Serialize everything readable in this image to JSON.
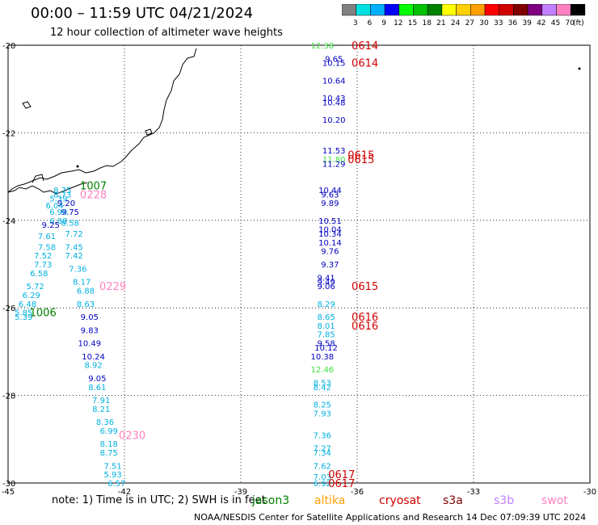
{
  "title": "00:00 – 11:59 UTC 04/21/2024",
  "subtitle": "12 hour collection of altimeter wave heights",
  "color_scale": {
    "labels": [
      "3",
      "6",
      "9",
      "12",
      "15",
      "18",
      "21",
      "24",
      "27",
      "30",
      "33",
      "36",
      "39",
      "42",
      "45",
      "70"
    ],
    "unit": "(ft)",
    "colors": [
      "#808080",
      "#00e0e0",
      "#00b0ff",
      "#0000ff",
      "#00ff00",
      "#00c000",
      "#008000",
      "#ffff00",
      "#ffd000",
      "#ffa000",
      "#ff0000",
      "#d00000",
      "#800000",
      "#800080",
      "#c080ff",
      "#ff80c0",
      "#000000"
    ]
  },
  "axes": {
    "lon_labels": [
      "-45",
      "-42",
      "-39",
      "-36",
      "-33",
      "-30"
    ],
    "lat_labels": [
      "-20",
      "-22",
      "-24",
      "-26",
      "-28",
      "-30"
    ],
    "lon_range": [
      -45,
      -30
    ],
    "lat_range": [
      -30,
      -20
    ]
  },
  "note": "note: 1) Time is in UTC; 2) SWH is in feet",
  "legend": [
    {
      "name": "jason3",
      "color": "#008000"
    },
    {
      "name": "altika",
      "color": "#ffa000"
    },
    {
      "name": "cryosat",
      "color": "#d00000"
    },
    {
      "name": "s3a",
      "color": "#800000"
    },
    {
      "name": "s3b",
      "color": "#c080ff"
    },
    {
      "name": "swot",
      "color": "#ff80c0"
    }
  ],
  "footer": "NOAA/NESDIS Center for Satellite Applications and Research   14 Dec 07:09:39 UTC 2024",
  "chart_data": {
    "type": "scatter",
    "xlabel": "",
    "ylabel": "",
    "xlim": [
      -45,
      -30
    ],
    "ylim": [
      -30,
      -20
    ],
    "grid": true,
    "points": [
      {
        "lon": -36.9,
        "lat": -20.0,
        "label": "12.38",
        "color": "#40e040"
      },
      {
        "lon": -36.6,
        "lat": -20.3,
        "label": "9.65",
        "color": "#0000c0"
      },
      {
        "lon": -36.6,
        "lat": -20.4,
        "label": "10.15",
        "color": "#0000c0"
      },
      {
        "lon": -36.6,
        "lat": -20.8,
        "label": "10.64",
        "color": "#0000c0"
      },
      {
        "lon": -36.6,
        "lat": -21.2,
        "label": "10.43",
        "color": "#0000c0"
      },
      {
        "lon": -36.6,
        "lat": -21.3,
        "label": "10.48",
        "color": "#0000c0"
      },
      {
        "lon": -36.6,
        "lat": -21.7,
        "label": "10.20",
        "color": "#0000c0"
      },
      {
        "lon": -36.6,
        "lat": -22.4,
        "label": "11.53",
        "color": "#0000c0"
      },
      {
        "lon": -36.6,
        "lat": -22.6,
        "label": "11.80",
        "color": "#40e040"
      },
      {
        "lon": -36.6,
        "lat": -22.7,
        "label": "11.29",
        "color": "#0000c0"
      },
      {
        "lon": -36.7,
        "lat": -23.3,
        "label": "10.44",
        "color": "#0000c0"
      },
      {
        "lon": -36.7,
        "lat": -23.4,
        "label": "9.63",
        "color": "#0000c0"
      },
      {
        "lon": -36.7,
        "lat": -23.6,
        "label": "9.89",
        "color": "#0000c0"
      },
      {
        "lon": -36.7,
        "lat": -24.0,
        "label": "10.51",
        "color": "#0000c0"
      },
      {
        "lon": -36.7,
        "lat": -24.2,
        "label": "10.04",
        "color": "#0000c0"
      },
      {
        "lon": -36.7,
        "lat": -24.3,
        "label": "10.34",
        "color": "#0000c0"
      },
      {
        "lon": -36.7,
        "lat": -24.5,
        "label": "10.14",
        "color": "#0000c0"
      },
      {
        "lon": -36.7,
        "lat": -24.7,
        "label": "9.76",
        "color": "#0000c0"
      },
      {
        "lon": -36.7,
        "lat": -25.0,
        "label": "9.37",
        "color": "#0000c0"
      },
      {
        "lon": -36.8,
        "lat": -25.3,
        "label": "9.41",
        "color": "#0000c0"
      },
      {
        "lon": -36.8,
        "lat": -25.4,
        "label": "9.49",
        "color": "#0000c0"
      },
      {
        "lon": -36.8,
        "lat": -25.5,
        "label": "9.06",
        "color": "#0000c0"
      },
      {
        "lon": -36.8,
        "lat": -25.9,
        "label": "8.29",
        "color": "#00b0e0"
      },
      {
        "lon": -36.8,
        "lat": -26.2,
        "label": "8.65",
        "color": "#00b0e0"
      },
      {
        "lon": -36.8,
        "lat": -26.4,
        "label": "8.01",
        "color": "#00b0e0"
      },
      {
        "lon": -36.8,
        "lat": -26.6,
        "label": "7.85",
        "color": "#00b0e0"
      },
      {
        "lon": -36.8,
        "lat": -26.8,
        "label": "9.58",
        "color": "#0000c0"
      },
      {
        "lon": -36.8,
        "lat": -26.9,
        "label": "10.12",
        "color": "#0000c0"
      },
      {
        "lon": -36.9,
        "lat": -27.1,
        "label": "10.38",
        "color": "#0000c0"
      },
      {
        "lon": -36.9,
        "lat": -27.4,
        "label": "12.46",
        "color": "#40e040"
      },
      {
        "lon": -36.9,
        "lat": -27.7,
        "label": "8.53",
        "color": "#00b0e0"
      },
      {
        "lon": -36.9,
        "lat": -27.8,
        "label": "8.42",
        "color": "#00b0e0"
      },
      {
        "lon": -36.9,
        "lat": -28.2,
        "label": "8.25",
        "color": "#00b0e0"
      },
      {
        "lon": -36.9,
        "lat": -28.4,
        "label": "7.93",
        "color": "#00b0e0"
      },
      {
        "lon": -36.9,
        "lat": -28.9,
        "label": "7.36",
        "color": "#00b0e0"
      },
      {
        "lon": -36.9,
        "lat": -29.2,
        "label": "7.27",
        "color": "#00b0e0"
      },
      {
        "lon": -36.9,
        "lat": -29.3,
        "label": "7.34",
        "color": "#00b0e0"
      },
      {
        "lon": -36.9,
        "lat": -29.6,
        "label": "7.62",
        "color": "#00b0e0"
      },
      {
        "lon": -36.9,
        "lat": -29.85,
        "label": "7.03",
        "color": "#00b0e0"
      },
      {
        "lon": -36.9,
        "lat": -30.0,
        "label": "6.92",
        "color": "#00b0e0"
      },
      {
        "lon": -43.6,
        "lat": -23.3,
        "label": "8.75",
        "color": "#00b0e0"
      },
      {
        "lon": -43.6,
        "lat": -23.4,
        "label": "8.73",
        "color": "#00b0e0"
      },
      {
        "lon": -43.7,
        "lat": -23.5,
        "label": "5.39",
        "color": "#00b0e0"
      },
      {
        "lon": -43.5,
        "lat": -23.6,
        "label": "9.20",
        "color": "#0000c0"
      },
      {
        "lon": -43.8,
        "lat": -23.65,
        "label": "6.04",
        "color": "#00b0e0"
      },
      {
        "lon": -43.4,
        "lat": -23.8,
        "label": "9.75",
        "color": "#0000c0"
      },
      {
        "lon": -43.7,
        "lat": -23.8,
        "label": "6.90",
        "color": "#00b0e0"
      },
      {
        "lon": -43.7,
        "lat": -24.0,
        "label": "6.88",
        "color": "#00b0e0"
      },
      {
        "lon": -43.4,
        "lat": -24.05,
        "label": "8.58",
        "color": "#00b0e0"
      },
      {
        "lon": -43.9,
        "lat": -24.1,
        "label": "9.25",
        "color": "#0000c0"
      },
      {
        "lon": -43.3,
        "lat": -24.3,
        "label": "7.72",
        "color": "#00b0e0"
      },
      {
        "lon": -44.0,
        "lat": -24.35,
        "label": "7.61",
        "color": "#00b0e0"
      },
      {
        "lon": -43.3,
        "lat": -24.6,
        "label": "7.45",
        "color": "#00b0e0"
      },
      {
        "lon": -44.0,
        "lat": -24.6,
        "label": "7.58",
        "color": "#00b0e0"
      },
      {
        "lon": -44.1,
        "lat": -24.8,
        "label": "7.52",
        "color": "#00b0e0"
      },
      {
        "lon": -43.3,
        "lat": -24.8,
        "label": "7.42",
        "color": "#00b0e0"
      },
      {
        "lon": -44.1,
        "lat": -25.0,
        "label": "7.73",
        "color": "#00b0e0"
      },
      {
        "lon": -43.2,
        "lat": -25.1,
        "label": "7.36",
        "color": "#00b0e0"
      },
      {
        "lon": -44.2,
        "lat": -25.2,
        "label": "6.58",
        "color": "#00b0e0"
      },
      {
        "lon": -43.1,
        "lat": -25.4,
        "label": "8.17",
        "color": "#00b0e0"
      },
      {
        "lon": -44.3,
        "lat": -25.5,
        "label": "5.72",
        "color": "#00b0e0"
      },
      {
        "lon": -43.0,
        "lat": -25.6,
        "label": "6.88",
        "color": "#00b0e0"
      },
      {
        "lon": -44.4,
        "lat": -25.7,
        "label": "6.29",
        "color": "#00b0e0"
      },
      {
        "lon": -43.0,
        "lat": -25.9,
        "label": "8.63",
        "color": "#00b0e0"
      },
      {
        "lon": -44.5,
        "lat": -25.9,
        "label": "6.48",
        "color": "#00b0e0"
      },
      {
        "lon": -44.6,
        "lat": -26.1,
        "label": "5.85",
        "color": "#00b0e0"
      },
      {
        "lon": -44.6,
        "lat": -26.2,
        "label": "5.39",
        "color": "#00b0e0"
      },
      {
        "lon": -42.9,
        "lat": -26.2,
        "label": "9.05",
        "color": "#0000c0"
      },
      {
        "lon": -42.9,
        "lat": -26.5,
        "label": "9.83",
        "color": "#0000c0"
      },
      {
        "lon": -42.9,
        "lat": -26.8,
        "label": "10.49",
        "color": "#0000c0"
      },
      {
        "lon": -42.8,
        "lat": -27.1,
        "label": "10.24",
        "color": "#0000c0"
      },
      {
        "lon": -42.8,
        "lat": -27.3,
        "label": "8.92",
        "color": "#00b0e0"
      },
      {
        "lon": -42.7,
        "lat": -27.6,
        "label": "9.05",
        "color": "#0000c0"
      },
      {
        "lon": -42.7,
        "lat": -27.8,
        "label": "8.61",
        "color": "#00b0e0"
      },
      {
        "lon": -42.6,
        "lat": -28.1,
        "label": "7.91",
        "color": "#00b0e0"
      },
      {
        "lon": -42.6,
        "lat": -28.3,
        "label": "8.21",
        "color": "#00b0e0"
      },
      {
        "lon": -42.5,
        "lat": -28.6,
        "label": "8.36",
        "color": "#00b0e0"
      },
      {
        "lon": -42.4,
        "lat": -28.8,
        "label": "6.99",
        "color": "#00b0e0"
      },
      {
        "lon": -42.4,
        "lat": -29.1,
        "label": "8.18",
        "color": "#00b0e0"
      },
      {
        "lon": -42.4,
        "lat": -29.3,
        "label": "8.75",
        "color": "#00b0e0"
      },
      {
        "lon": -42.3,
        "lat": -29.6,
        "label": "7.51",
        "color": "#00b0e0"
      },
      {
        "lon": -42.3,
        "lat": -29.8,
        "label": "5.93",
        "color": "#00b0e0"
      },
      {
        "lon": -42.2,
        "lat": -30.0,
        "label": "6.57",
        "color": "#00b0e0"
      }
    ],
    "time_labels": [
      {
        "lon": -35.8,
        "lat": -20.0,
        "label": "0614",
        "color": "#d00000"
      },
      {
        "lon": -35.8,
        "lat": -20.4,
        "label": "0614",
        "color": "#d00000"
      },
      {
        "lon": -35.9,
        "lat": -22.5,
        "label": "0615",
        "color": "#d00000"
      },
      {
        "lon": -35.9,
        "lat": -22.6,
        "label": "0615",
        "color": "#d00000"
      },
      {
        "lon": -35.8,
        "lat": -25.5,
        "label": "0615",
        "color": "#d00000"
      },
      {
        "lon": -35.8,
        "lat": -26.2,
        "label": "0616",
        "color": "#d00000"
      },
      {
        "lon": -35.8,
        "lat": -26.4,
        "label": "0616",
        "color": "#d00000"
      },
      {
        "lon": -36.4,
        "lat": -29.8,
        "label": "0617",
        "color": "#d00000"
      },
      {
        "lon": -36.4,
        "lat": -30.0,
        "label": "0617",
        "color": "#d00000"
      },
      {
        "lon": -42.8,
        "lat": -23.2,
        "label": "1007",
        "color": "#008000"
      },
      {
        "lon": -44.1,
        "lat": -26.1,
        "label": "1006",
        "color": "#008000"
      },
      {
        "lon": -42.8,
        "lat": -23.4,
        "label": "0228",
        "color": "#ff80c0"
      },
      {
        "lon": -42.3,
        "lat": -25.5,
        "label": "0229",
        "color": "#ff80c0"
      },
      {
        "lon": -41.8,
        "lat": -28.9,
        "label": "0230",
        "color": "#ff80c0"
      }
    ]
  }
}
